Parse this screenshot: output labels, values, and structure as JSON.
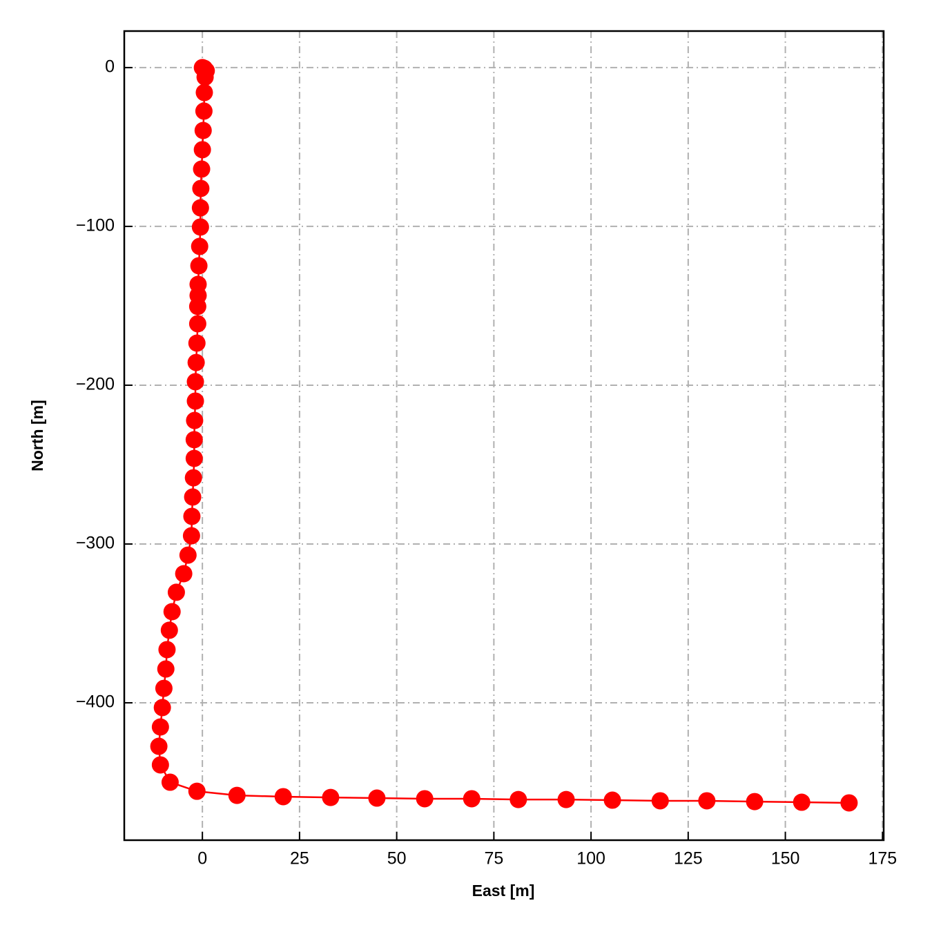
{
  "chart_data": {
    "type": "line",
    "xlabel": "East [m]",
    "ylabel": "North [m]",
    "color": "#ff0000",
    "marker": true,
    "grid": true,
    "x": [
      0,
      0.5,
      1,
      0.7,
      0.5,
      0.4,
      0.2,
      0,
      -0.2,
      -0.4,
      -0.5,
      -0.5,
      -0.7,
      -0.9,
      -1.1,
      -1.1,
      -1.2,
      -1.2,
      -1.4,
      -1.6,
      -1.8,
      -1.8,
      -2,
      -2.1,
      -2.1,
      -2.3,
      -2.5,
      -2.7,
      -2.8,
      -3.7,
      -4.8,
      -6.7,
      -7.8,
      -8.5,
      -9.1,
      -9.4,
      -9.9,
      -10.3,
      -10.8,
      -11.2,
      -10.8,
      -8.3,
      -1.4,
      8.9,
      20.8,
      33,
      44.9,
      57.2,
      69.3,
      81.3,
      93.6,
      105.5,
      117.8,
      129.8,
      142.1,
      154.2,
      166.4
    ],
    "values": [
      0,
      -0.5,
      -2,
      -6,
      -15.7,
      -27.4,
      -39.6,
      -51.7,
      -63.9,
      -76.1,
      -88.3,
      -100.4,
      -112.6,
      -124.8,
      -136.5,
      -143.5,
      -150.4,
      -161.3,
      -173.5,
      -185.7,
      -197.8,
      -210,
      -222.2,
      -234.3,
      -246.1,
      -258.3,
      -270.4,
      -282.6,
      -294.8,
      -307,
      -318.7,
      -330.4,
      -342.6,
      -354.3,
      -366.5,
      -378.7,
      -390.9,
      -403,
      -415.2,
      -427.4,
      -439.1,
      -450,
      -455.7,
      -458.3,
      -459.1,
      -459.6,
      -460,
      -460.4,
      -460.4,
      -460.9,
      -460.9,
      -461.3,
      -461.7,
      -461.7,
      -462.2,
      -462.6,
      -463
    ],
    "xlim": [
      -20.1,
      175.3
    ],
    "ylim": [
      -486.5,
      23
    ],
    "xticks": [
      0,
      25,
      50,
      75,
      100,
      125,
      150,
      175
    ],
    "yticks": [
      0,
      {
        "value": -100,
        "label": "−100"
      },
      {
        "value": -200,
        "label": "−200"
      },
      {
        "value": -300,
        "label": "−300"
      },
      {
        "value": -400,
        "label": "−400"
      }
    ]
  }
}
